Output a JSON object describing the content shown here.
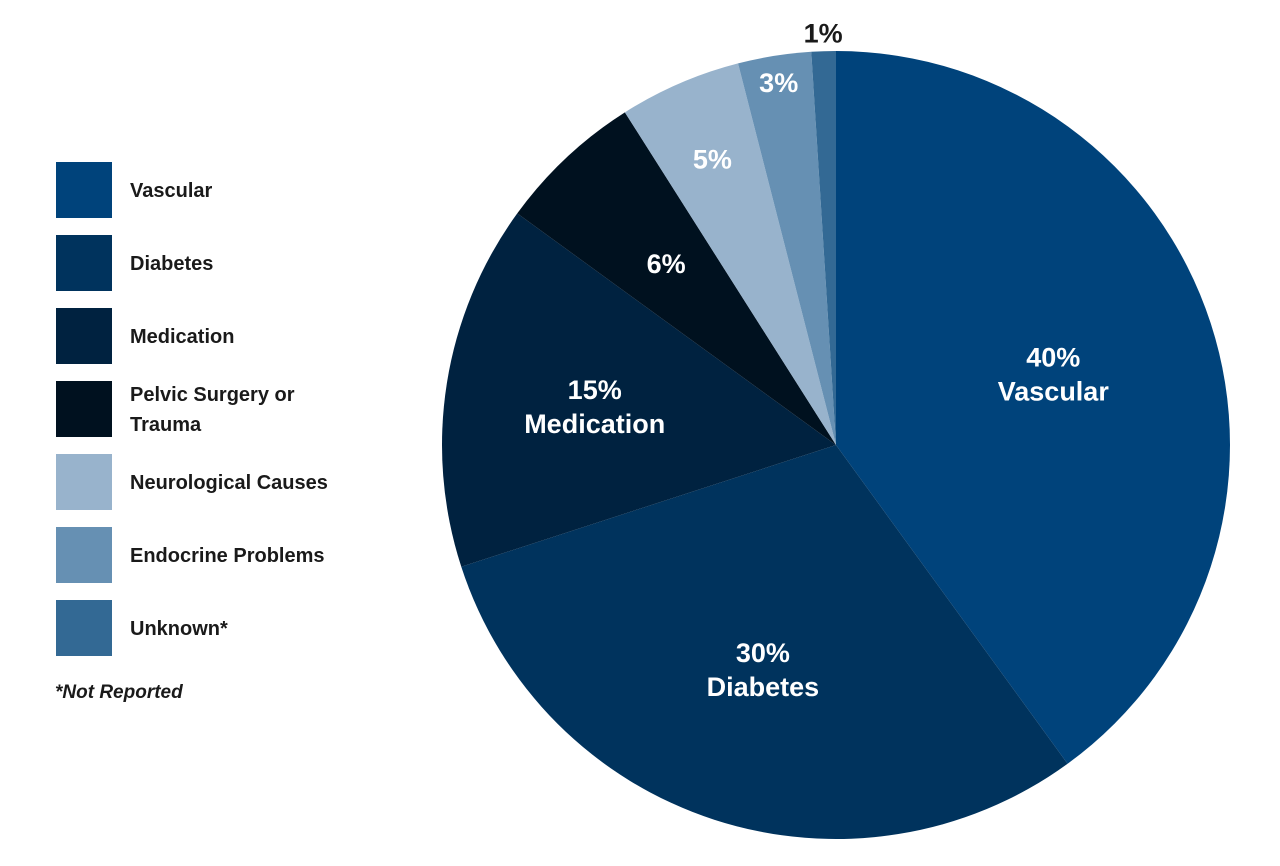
{
  "chart_data": {
    "type": "pie",
    "start_angle": "12 o'clock",
    "direction": "clockwise",
    "slices": [
      {
        "name": "Vascular",
        "value": 40,
        "label": "40%",
        "sublabel": "Vascular",
        "color": "#00437b"
      },
      {
        "name": "Diabetes",
        "value": 30,
        "label": "30%",
        "sublabel": "Diabetes",
        "color": "#00335d"
      },
      {
        "name": "Medication",
        "value": 15,
        "label": "15%",
        "sublabel": "Medication",
        "color": "#002240"
      },
      {
        "name": "Pelvic Surgery or Trauma",
        "value": 6,
        "label": "6%",
        "sublabel": "",
        "color": "#00111f"
      },
      {
        "name": "Neurological Causes",
        "value": 5,
        "label": "5%",
        "sublabel": "",
        "color": "#98b3cc"
      },
      {
        "name": "Endocrine Problems",
        "value": 3,
        "label": "3%",
        "sublabel": "",
        "color": "#6690b3"
      },
      {
        "name": "Unknown*",
        "value": 1,
        "label": "1%",
        "sublabel": "",
        "color": "#336994"
      }
    ],
    "legend": {
      "placement": "left",
      "entries": [
        {
          "label_lines": [
            "Vascular"
          ],
          "color": "#00437b"
        },
        {
          "label_lines": [
            "Diabetes"
          ],
          "color": "#00335d"
        },
        {
          "label_lines": [
            "Medication"
          ],
          "color": "#002240"
        },
        {
          "label_lines": [
            "Pelvic Surgery or",
            "Trauma"
          ],
          "color": "#00111f"
        },
        {
          "label_lines": [
            "Neurological Causes"
          ],
          "color": "#98b3cc"
        },
        {
          "label_lines": [
            "Endocrine Problems"
          ],
          "color": "#6690b3"
        },
        {
          "label_lines": [
            "Unknown*"
          ],
          "color": "#336994"
        }
      ]
    },
    "footnote": "*Not Reported"
  }
}
